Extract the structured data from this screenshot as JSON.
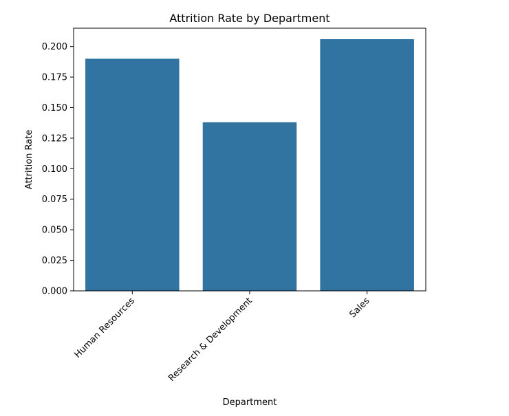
{
  "chart_data": {
    "type": "bar",
    "title": "Attrition Rate by Department",
    "xlabel": "Department",
    "ylabel": "Attrition Rate",
    "categories": [
      "Human Resources",
      "Research & Development",
      "Sales"
    ],
    "values": [
      0.19,
      0.138,
      0.206
    ],
    "ylim": [
      0,
      0.215
    ],
    "yticks": [
      0.0,
      0.025,
      0.05,
      0.075,
      0.1,
      0.125,
      0.15,
      0.175,
      0.2
    ],
    "ytick_labels": [
      "0.000",
      "0.025",
      "0.050",
      "0.075",
      "0.100",
      "0.125",
      "0.150",
      "0.175",
      "0.200"
    ],
    "bar_color": "#3274a1",
    "grid": false,
    "legend": "none"
  }
}
